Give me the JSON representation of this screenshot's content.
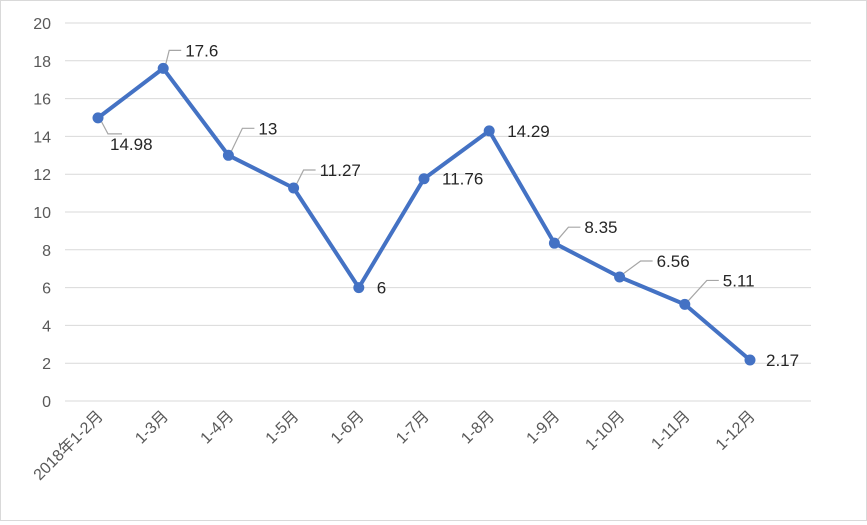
{
  "chart_data": {
    "type": "line",
    "title": "",
    "xlabel": "",
    "ylabel": "",
    "ylim": [
      0,
      20
    ],
    "yticks": [
      0,
      2,
      4,
      6,
      8,
      10,
      12,
      14,
      16,
      18,
      20
    ],
    "grid": true,
    "legend": "none",
    "categories": [
      "2018年1-2月",
      "1-3月",
      "1-4月",
      "1-5月",
      "1-6月",
      "1-7月",
      "1-8月",
      "1-9月",
      "1-10月",
      "1-11月",
      "1-12月"
    ],
    "series": [
      {
        "color": "#4472c4",
        "values": [
          14.98,
          17.6,
          13,
          11.27,
          6,
          11.76,
          14.29,
          8.35,
          6.56,
          5.11,
          2.17
        ],
        "labels": [
          "14.98",
          "17.6",
          "13",
          "11.27",
          "6",
          "11.76",
          "14.29",
          "8.35",
          "6.56",
          "5.11",
          "2.17"
        ]
      }
    ]
  }
}
